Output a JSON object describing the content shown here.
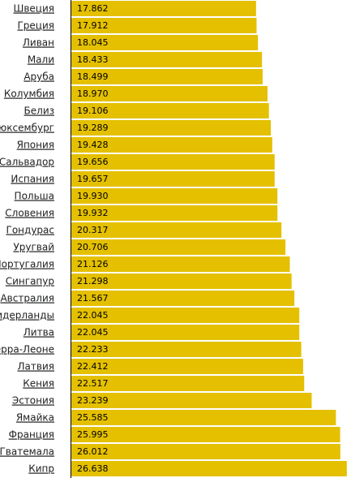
{
  "chart_data": {
    "type": "bar",
    "orientation": "horizontal",
    "color": "#e4c000",
    "categories": [
      "Швеция",
      "Греция",
      "Ливан",
      "Мали",
      "Аруба",
      "Колумбия",
      "Белиз",
      "Люксембург",
      "Япония",
      "Сальвадор",
      "Испания",
      "Польша",
      "Словения",
      "Гондурас",
      "Уругвай",
      "Португалия",
      "Сингапур",
      "Австралия",
      "Нидерланды",
      "Литва",
      "Сьерра-Леоне",
      "Латвия",
      "Кения",
      "Эстония",
      "Ямайка",
      "Франция",
      "Гватемала",
      "Кипр"
    ],
    "values": [
      17.862,
      17.912,
      18.045,
      18.433,
      18.499,
      18.97,
      19.106,
      19.289,
      19.428,
      19.656,
      19.657,
      19.93,
      19.932,
      20.317,
      20.706,
      21.126,
      21.298,
      21.567,
      22.045,
      22.045,
      22.233,
      22.412,
      22.517,
      23.239,
      25.585,
      25.995,
      26.012,
      26.638
    ],
    "value_labels": [
      "17.862",
      "17.912",
      "18.045",
      "18.433",
      "18.499",
      "18.970",
      "19.106",
      "19.289",
      "19.428",
      "19.656",
      "19.657",
      "19.930",
      "19.932",
      "20.317",
      "20.706",
      "21.126",
      "21.298",
      "21.567",
      "22.045",
      "22.045",
      "22.233",
      "22.412",
      "22.517",
      "23.239",
      "25.585",
      "25.995",
      "26.012",
      "26.638"
    ],
    "xlim": [
      0,
      28.3
    ]
  }
}
